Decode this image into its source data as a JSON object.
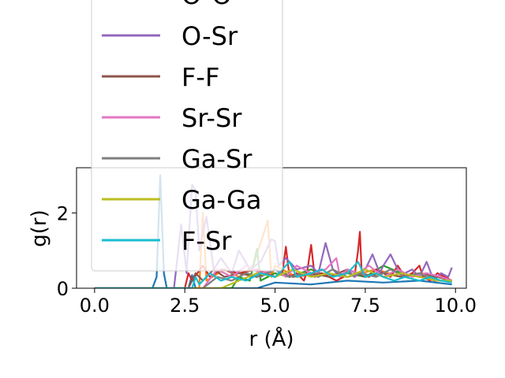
{
  "chart_data": {
    "type": "line",
    "title": "",
    "xlabel": "r (Å)",
    "ylabel": "g(r)",
    "xlim": [
      -0.5,
      10.3
    ],
    "ylim": [
      0,
      3.2
    ],
    "xticks": [
      0.0,
      2.5,
      5.0,
      7.5,
      10.0
    ],
    "xtick_labels": [
      "0.0",
      "2.5",
      "5.0",
      "7.5",
      "10.0"
    ],
    "yticks": [
      0,
      2
    ],
    "ytick_labels": [
      "0",
      "2"
    ],
    "grid": false,
    "legend_placement": "upper-left, extending above the axes",
    "series": [
      {
        "name": "",
        "color": "#1f77b4",
        "x": [
          0.0,
          1.6,
          1.72,
          1.82,
          1.92,
          2.0,
          2.6,
          2.7,
          2.8,
          4.5,
          5.0,
          6.0,
          7.0,
          8.0,
          9.0,
          9.9
        ],
        "y": [
          0,
          0,
          0.3,
          3.0,
          0.4,
          0,
          0,
          0.35,
          0,
          0,
          0.15,
          0.1,
          0.2,
          0.15,
          0.2,
          0.1
        ]
      },
      {
        "name": "",
        "color": "#ff7f0e",
        "x": [
          0.0,
          2.9,
          3.0,
          3.1,
          3.6,
          4.0,
          4.4,
          4.8,
          4.9,
          5.0,
          5.6,
          6.2,
          7.0,
          7.8,
          8.5,
          9.2,
          9.9
        ],
        "y": [
          0,
          0,
          2.0,
          0.2,
          0.5,
          0.3,
          0.6,
          1.8,
          0.3,
          0.6,
          0.3,
          0.4,
          0.3,
          0.5,
          0.3,
          0.4,
          0.2
        ]
      },
      {
        "name": "",
        "color": "#2ca02c",
        "x": [
          0.0,
          3.8,
          4.0,
          4.3,
          4.5,
          4.6,
          5.0,
          5.4,
          6.0,
          6.5,
          7.0,
          7.5,
          8.0,
          8.5,
          9.0,
          9.5,
          9.9
        ],
        "y": [
          0,
          0,
          0.3,
          0.2,
          1.05,
          0.2,
          0.4,
          0.3,
          0.5,
          0.3,
          0.4,
          0.3,
          0.6,
          0.4,
          0.3,
          0.3,
          0.2
        ]
      },
      {
        "name": "O-O",
        "color": "#d62728",
        "x": [
          0.0,
          2.5,
          2.6,
          2.7,
          3.0,
          3.2,
          3.5,
          4.0,
          4.5,
          5.0,
          5.2,
          5.3,
          5.4,
          5.6,
          5.8,
          5.9,
          6.0,
          6.1,
          6.3,
          6.5,
          6.7,
          6.9,
          7.0,
          7.2,
          7.3,
          7.35,
          7.4,
          7.6,
          7.8,
          8.0,
          8.2,
          8.4,
          8.6,
          8.8,
          9.0,
          9.1,
          9.3,
          9.5,
          9.7,
          9.9
        ],
        "y": [
          0,
          0,
          0.4,
          0.2,
          0.6,
          0.3,
          0.5,
          0.4,
          0.5,
          0.3,
          0.4,
          1.1,
          0.3,
          0.4,
          0.2,
          0.5,
          1.15,
          0.3,
          0.4,
          0.3,
          0.2,
          0.3,
          0.5,
          0.3,
          1.0,
          1.5,
          0.4,
          0.3,
          0.5,
          0.4,
          0.3,
          0.6,
          0.3,
          0.4,
          0.6,
          0.3,
          0.2,
          0.4,
          0.3,
          0.2
        ]
      },
      {
        "name": "O-Sr",
        "color": "#9467bd",
        "x": [
          0.0,
          2.2,
          2.4,
          2.55,
          2.7,
          2.8,
          2.9,
          3.1,
          3.3,
          3.5,
          3.8,
          4.0,
          4.3,
          4.6,
          4.9,
          5.0,
          5.1,
          5.3,
          5.6,
          6.0,
          6.2,
          6.4,
          6.6,
          6.8,
          7.0,
          7.2,
          7.5,
          7.7,
          7.9,
          8.0,
          8.2,
          8.4,
          8.6,
          8.8,
          9.0,
          9.2,
          9.4,
          9.6,
          9.8,
          9.9
        ],
        "y": [
          0,
          0,
          1.7,
          0.4,
          2.75,
          2.6,
          1.0,
          1.9,
          0.5,
          0.8,
          0.4,
          1.0,
          0.5,
          0.7,
          1.3,
          1.25,
          0.6,
          0.8,
          0.5,
          0.6,
          0.4,
          1.2,
          0.5,
          0.3,
          0.5,
          0.3,
          0.5,
          0.9,
          0.4,
          0.6,
          0.9,
          0.5,
          0.4,
          0.5,
          0.3,
          0.7,
          0.2,
          0.4,
          0.3,
          0.55
        ]
      },
      {
        "name": "F-F",
        "color": "#8c564b",
        "x": [
          0.0,
          2.6,
          2.8,
          3.0,
          3.3,
          3.6,
          4.0,
          4.5,
          5.0,
          5.5,
          6.0,
          6.5,
          7.0,
          7.5,
          8.0,
          8.5,
          9.0,
          9.5,
          9.9
        ],
        "y": [
          0,
          0,
          0.4,
          0.2,
          0.5,
          0.3,
          0.4,
          0.3,
          0.5,
          0.3,
          0.4,
          0.3,
          0.5,
          0.3,
          0.4,
          0.3,
          0.4,
          0.3,
          0.2
        ]
      },
      {
        "name": "Sr-Sr",
        "color": "#e377c2",
        "x": [
          0.0,
          3.0,
          3.4,
          3.8,
          4.2,
          4.6,
          5.0,
          5.3,
          5.6,
          6.0,
          6.4,
          6.7,
          6.8,
          7.0,
          7.3,
          7.6,
          8.0,
          8.4,
          8.8,
          9.2,
          9.6,
          9.9
        ],
        "y": [
          0,
          0,
          0.5,
          0.3,
          0.6,
          0.4,
          0.5,
          0.3,
          0.6,
          0.4,
          0.5,
          0.8,
          0.3,
          0.5,
          0.4,
          0.6,
          0.3,
          0.5,
          0.3,
          0.4,
          0.3,
          0.2
        ]
      },
      {
        "name": "Ga-Sr",
        "color": "#7f7f7f",
        "x": [
          0.0,
          3.0,
          3.4,
          3.8,
          4.2,
          4.6,
          5.0,
          5.4,
          5.8,
          6.2,
          6.6,
          7.0,
          7.4,
          7.8,
          8.2,
          8.6,
          9.0,
          9.4,
          9.9
        ],
        "y": [
          0,
          0,
          0.3,
          0.2,
          0.4,
          0.3,
          0.5,
          0.3,
          0.4,
          0.3,
          0.5,
          0.3,
          0.4,
          0.3,
          0.5,
          0.3,
          0.4,
          0.2,
          0.2
        ]
      },
      {
        "name": "Ga-Ga",
        "color": "#bcbd22",
        "x": [
          0.0,
          3.5,
          4.0,
          4.5,
          5.0,
          5.5,
          6.0,
          6.5,
          7.0,
          7.5,
          8.0,
          8.5,
          9.0,
          9.5,
          9.9
        ],
        "y": [
          0,
          0,
          0.2,
          0.4,
          0.3,
          0.5,
          0.3,
          0.4,
          0.3,
          0.5,
          0.3,
          0.4,
          0.3,
          0.2,
          0.2
        ]
      },
      {
        "name": "F-Sr",
        "color": "#17becf",
        "x": [
          0.0,
          2.7,
          2.8,
          2.9,
          3.2,
          3.5,
          3.8,
          4.2,
          4.6,
          5.0,
          5.2,
          5.4,
          5.6,
          6.0,
          6.3,
          6.6,
          7.0,
          7.3,
          7.5,
          7.8,
          8.0,
          8.3,
          8.6,
          9.0,
          9.3,
          9.6,
          9.9
        ],
        "y": [
          0,
          0,
          0.3,
          0.1,
          0.4,
          0.2,
          0.3,
          0.2,
          0.4,
          0.3,
          0.5,
          0.7,
          0.3,
          0.4,
          0.5,
          0.3,
          0.4,
          0.7,
          0.3,
          0.4,
          0.3,
          0.2,
          0.3,
          0.2,
          0.3,
          0.2,
          0.15
        ]
      }
    ]
  }
}
